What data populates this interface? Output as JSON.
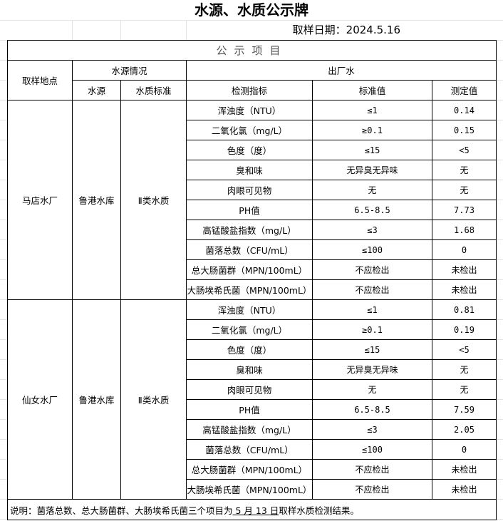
{
  "title": "水源、水质公示牌",
  "date": "取样日期：2024.5.16",
  "section": "公示项目",
  "headers": {
    "site": "取样地点",
    "source_info": "水源情况",
    "outlet": "出厂水",
    "source": "水源",
    "quality_std": "水质标准",
    "indicator": "检测指标",
    "standard": "标准值",
    "measured": "测定值"
  },
  "plants": [
    {
      "name": "马店水厂",
      "source": "鲁港水库",
      "quality": "Ⅱ类水质",
      "rows": [
        [
          "浑浊度（NTU）",
          "≤1",
          "0.14"
        ],
        [
          "二氧化氯（mg/L）",
          "≥0.1",
          "0.15"
        ],
        [
          "色度（度）",
          "≤15",
          "<5"
        ],
        [
          "臭和味",
          "无异臭无异味",
          "无"
        ],
        [
          "肉眼可见物",
          "无",
          "无"
        ],
        [
          "PH值",
          "6.5-8.5",
          "7.73"
        ],
        [
          "高锰酸盐指数（mg/L）",
          "≤3",
          "1.68"
        ],
        [
          "菌落总数（CFU/mL）",
          "≤100",
          "0"
        ],
        [
          "总大肠菌群（MPN/100mL）",
          "不应检出",
          "未检出"
        ],
        [
          "大肠埃希氏菌（MPN/100mL）",
          "不应检出",
          "未检出"
        ]
      ]
    },
    {
      "name": "仙女水厂",
      "source": "鲁港水库",
      "quality": "Ⅱ类水质",
      "rows": [
        [
          "浑浊度（NTU）",
          "≤1",
          "0.81"
        ],
        [
          "二氧化氯（mg/L）",
          "≥0.1",
          "0.19"
        ],
        [
          "色度（度）",
          "≤15",
          "<5"
        ],
        [
          "臭和味",
          "无异臭无异味",
          "无"
        ],
        [
          "肉眼可见物",
          "无",
          "无"
        ],
        [
          "PH值",
          "6.5-8.5",
          "7.59"
        ],
        [
          "高锰酸盐指数（mg/L）",
          "≤3",
          "2.05"
        ],
        [
          "菌落总数（CFU/mL）",
          "≤100",
          "0"
        ],
        [
          "总大肠菌群（MPN/100mL）",
          "不应检出",
          "未检出"
        ],
        [
          "大肠埃希氏菌（MPN/100mL）",
          "不应检出",
          "未检出"
        ]
      ]
    }
  ],
  "note": {
    "prefix": "说明：菌落总数、总大肠菌群、大肠埃希氏菌三个项目为",
    "month": " 5 ",
    "m": "月",
    "day": " 13 ",
    "d": "日",
    "suffix": "取样水质检测结果。"
  }
}
